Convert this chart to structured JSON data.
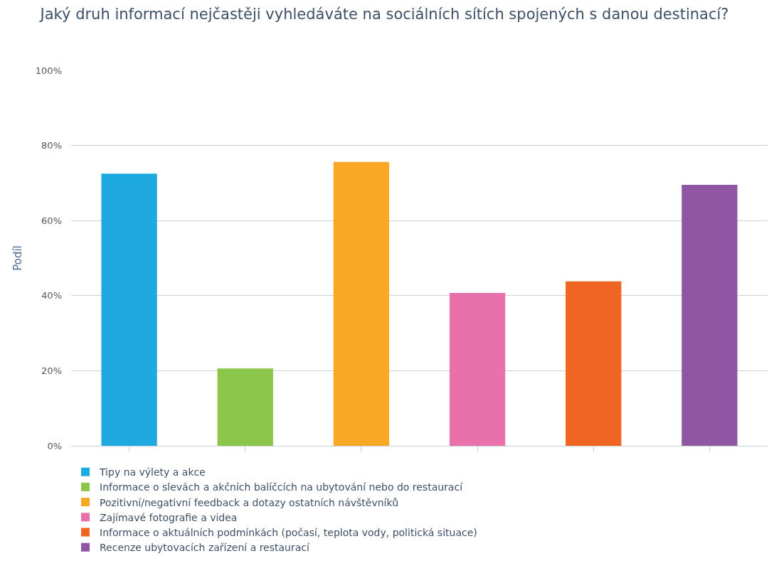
{
  "chart_data": {
    "type": "bar",
    "title": "Jaký druh informací nejčastěji vyhledáváte na sociálních sítích spojených s danou destinací?",
    "ylabel": "Podíl",
    "categories": [
      null,
      null,
      null,
      null,
      null,
      null
    ],
    "series": [
      {
        "name": "Tipy na výlety a akce",
        "color": "#1fa9e1",
        "values": [
          72.5,
          null,
          null,
          null,
          null,
          null
        ]
      },
      {
        "name": "Informace o slevách a akčních balíčcích na ubytování nebo do restaurací",
        "color": "#8bc54a",
        "values": [
          null,
          20.6,
          null,
          null,
          null,
          null
        ]
      },
      {
        "name": "Pozitivní/negativní feedback a dotazy ostatních návštěvníků",
        "color": "#f9a825",
        "values": [
          null,
          null,
          75.6,
          null,
          null,
          null
        ]
      },
      {
        "name": "Zajímavé fotografie a videa",
        "color": "#e870ab",
        "values": [
          null,
          null,
          null,
          40.7,
          null,
          null
        ]
      },
      {
        "name": "Informace o aktuálních podmínkách (počasí, teplota vody, politická situace)",
        "color": "#f06522",
        "values": [
          null,
          null,
          null,
          null,
          43.8,
          null
        ]
      },
      {
        "name": "Recenze ubytovacích zařízení a restaurací",
        "color": "#8e56a3",
        "values": [
          null,
          null,
          null,
          null,
          null,
          69.5
        ]
      }
    ],
    "ylim": [
      0,
      100
    ],
    "yticks": [
      {
        "value": 0,
        "label": "0%"
      },
      {
        "value": 20,
        "label": "20%"
      },
      {
        "value": 40,
        "label": "40%"
      },
      {
        "value": 60,
        "label": "60%"
      },
      {
        "value": 80,
        "label": "80%"
      },
      {
        "value": 100,
        "label": "100%"
      }
    ],
    "grid": "y",
    "legend": "bottom",
    "tick_labels": "y"
  }
}
